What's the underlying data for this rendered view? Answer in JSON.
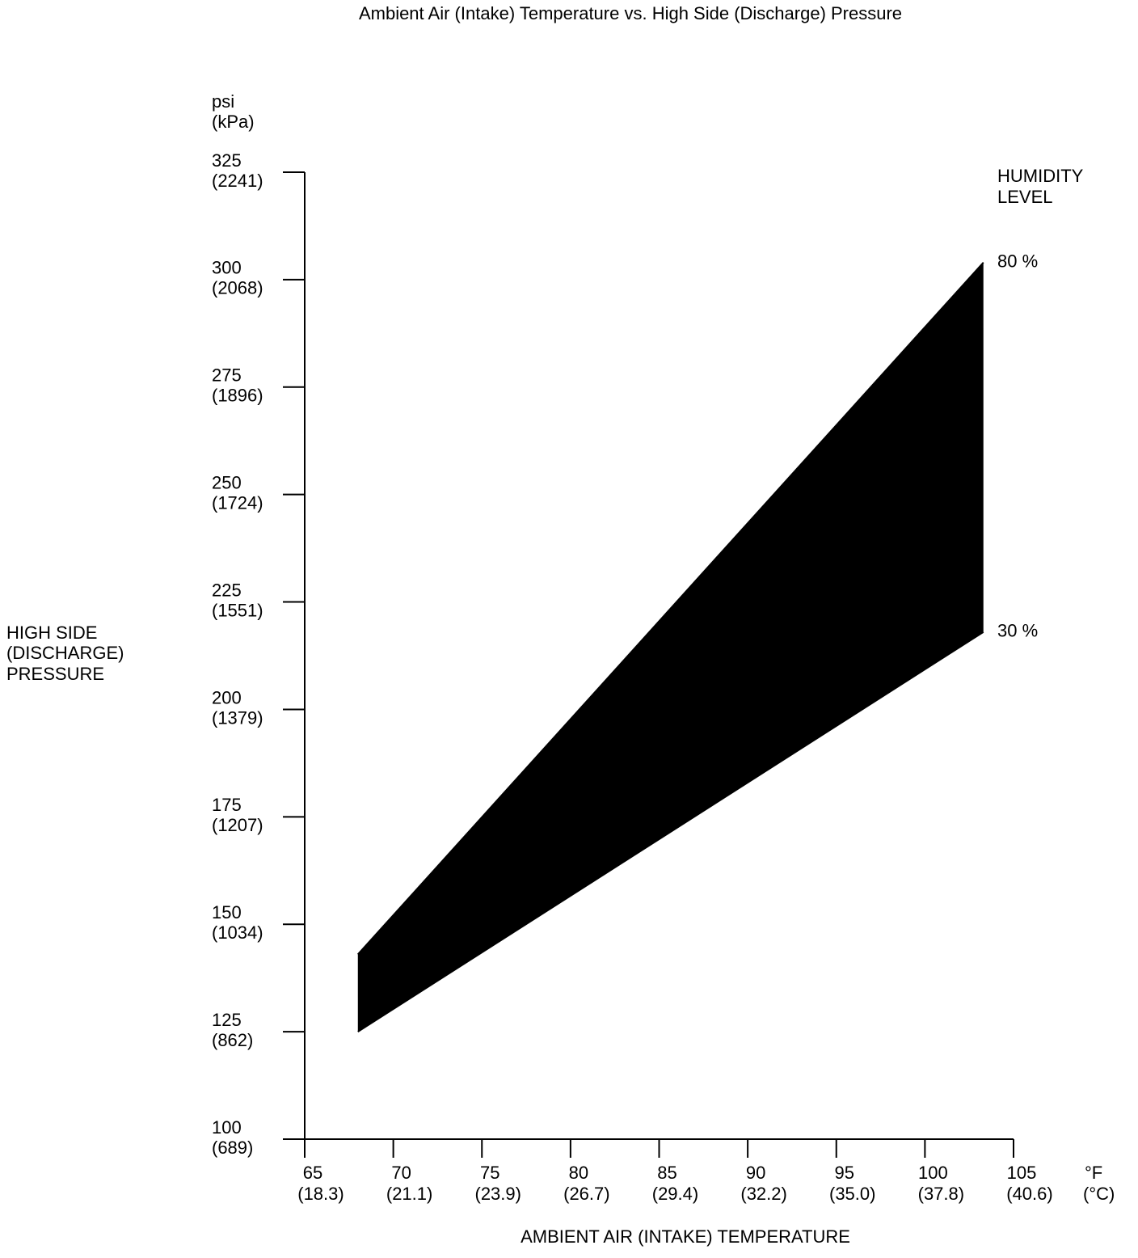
{
  "chart_data": {
    "type": "area",
    "title": "Ambient Air (Intake) Temperature vs. High Side (Discharge) Pressure",
    "y_unit_labels": [
      "psi",
      "(kPa)"
    ],
    "y_title": [
      "HIGH SIDE",
      "(DISCHARGE)",
      "PRESSURE"
    ],
    "x_title": "AMBIENT AIR (INTAKE) TEMPERATURE",
    "x_unit_labels": [
      "°F",
      "(°C)"
    ],
    "legend_title": [
      "HUMIDITY",
      "LEVEL"
    ],
    "x": [
      68,
      103.3
    ],
    "series": [
      {
        "name": "80 %",
        "color": "#000000",
        "values": [
          143,
          304
        ]
      },
      {
        "name": "30 %",
        "color": "#000000",
        "values": [
          125,
          218
        ]
      }
    ],
    "fill_color": "#000000",
    "xlim": [
      65,
      105
    ],
    "ylim": [
      100,
      325
    ],
    "xticks": [
      65,
      70,
      75,
      80,
      85,
      90,
      95,
      100,
      105
    ],
    "xtick_secondary_labels": [
      "(18.3)",
      "(21.1)",
      "(23.9)",
      "(26.7)",
      "(29.4)",
      "(32.2)",
      "(35.0)",
      "(37.8)",
      "(40.6)"
    ],
    "yticks": [
      100,
      125,
      150,
      175,
      200,
      225,
      250,
      275,
      300,
      325
    ],
    "ytick_secondary_labels": [
      "(689)",
      "(862)",
      "(1034)",
      "(1207)",
      "(1379)",
      "(1551)",
      "(1724)",
      "(1896)",
      "(2068)",
      "(2241)"
    ],
    "grid": false
  }
}
